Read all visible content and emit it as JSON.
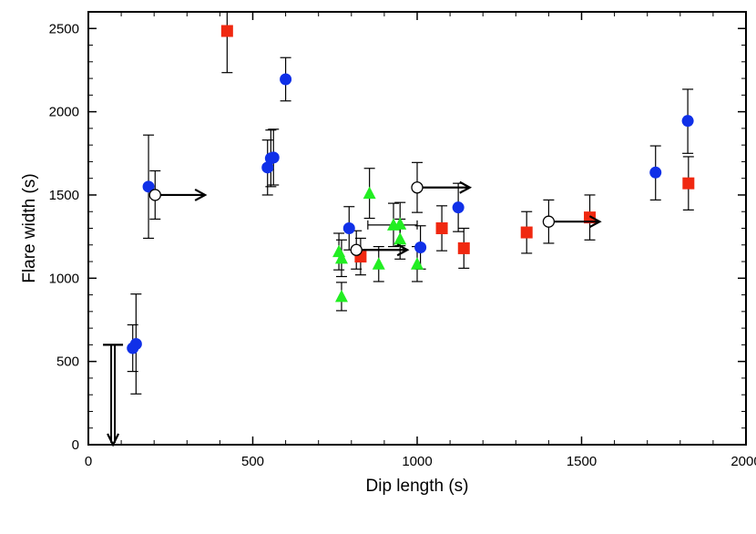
{
  "chart_data": {
    "type": "scatter",
    "xlabel": "Dip length (s)",
    "ylabel": "Flare width (s)",
    "xlim": [
      0,
      2000
    ],
    "ylim": [
      0,
      2600
    ],
    "xticks": [
      0,
      500,
      1000,
      1500,
      2000
    ],
    "yticks": [
      0,
      500,
      1000,
      1500,
      2000,
      2500
    ],
    "x_tick_labels": [
      "0",
      "500",
      "1000",
      "1500",
      "2000"
    ],
    "y_tick_labels": [
      "0",
      "500",
      "1000",
      "1500",
      "2000",
      "2500"
    ],
    "series": [
      {
        "name": "blue circles",
        "marker": "circle",
        "color": "#1030e8",
        "points": [
          {
            "x": 135,
            "y": 580,
            "yerr": [
              440,
              720
            ]
          },
          {
            "x": 145,
            "y": 605,
            "yerr": [
              305,
              905
            ]
          },
          {
            "x": 183,
            "y": 1550,
            "yerr": [
              1240,
              1860
            ]
          },
          {
            "x": 545,
            "y": 1665,
            "yerr": [
              1500,
              1830
            ]
          },
          {
            "x": 555,
            "y": 1720,
            "yerr": [
              1550,
              1890
            ]
          },
          {
            "x": 563,
            "y": 1725,
            "yerr": [
              1560,
              1895
            ]
          },
          {
            "x": 600,
            "y": 2195,
            "yerr": [
              2065,
              2325
            ],
            "xerr": [
              590,
              610
            ]
          },
          {
            "x": 793,
            "y": 1300,
            "yerr": [
              1170,
              1430
            ]
          },
          {
            "x": 1010,
            "y": 1185,
            "yerr": [
              1055,
              1315
            ]
          },
          {
            "x": 1125,
            "y": 1425,
            "yerr": [
              1280,
              1570
            ]
          },
          {
            "x": 1725,
            "y": 1635,
            "yerr": [
              1470,
              1795
            ],
            "xerr": [
              1715,
              1735
            ]
          },
          {
            "x": 1823,
            "y": 1945,
            "yerr": [
              1750,
              2135
            ],
            "xerr": [
              1813,
              1833
            ]
          }
        ]
      },
      {
        "name": "red squares",
        "marker": "square",
        "color": "#f02810",
        "points": [
          {
            "x": 422,
            "y": 2485,
            "yerr": [
              2235,
              2600
            ],
            "xerr": [
              412,
              432
            ]
          },
          {
            "x": 828,
            "y": 1130,
            "yerr": [
              1020,
              1240
            ]
          },
          {
            "x": 1075,
            "y": 1300,
            "yerr": [
              1165,
              1435
            ]
          },
          {
            "x": 1142,
            "y": 1180,
            "yerr": [
              1060,
              1300
            ]
          },
          {
            "x": 1333,
            "y": 1275,
            "yerr": [
              1150,
              1400
            ]
          },
          {
            "x": 1525,
            "y": 1365,
            "yerr": [
              1230,
              1500
            ]
          },
          {
            "x": 1825,
            "y": 1570,
            "yerr": [
              1410,
              1730
            ]
          }
        ]
      },
      {
        "name": "green triangles",
        "marker": "triangle",
        "color": "#22ee22",
        "points": [
          {
            "x": 762,
            "y": 1160,
            "yerr": [
              1050,
              1270
            ]
          },
          {
            "x": 770,
            "y": 1120,
            "yerr": [
              1010,
              1230
            ]
          },
          {
            "x": 770,
            "y": 890,
            "yerr": [
              805,
              975
            ]
          },
          {
            "x": 855,
            "y": 1510,
            "yerr": [
              1360,
              1660
            ]
          },
          {
            "x": 883,
            "y": 1085,
            "yerr": [
              980,
              1190
            ]
          },
          {
            "x": 928,
            "y": 1320,
            "yerr": [
              1190,
              1450
            ],
            "xerr": [
              850,
              1000
            ]
          },
          {
            "x": 948,
            "y": 1325,
            "yerr": [
              1195,
              1455
            ]
          },
          {
            "x": 948,
            "y": 1235,
            "yerr": [
              1115,
              1355
            ]
          },
          {
            "x": 1000,
            "y": 1085,
            "yerr": [
              980,
              1190
            ]
          }
        ]
      },
      {
        "name": "open circles (lower limits)",
        "marker": "open-circle",
        "color": "#000000",
        "points": [
          {
            "x": 203,
            "y": 1500,
            "yerr": [
              1355,
              1645
            ],
            "arrow_to_x": 355
          },
          {
            "x": 815,
            "y": 1170,
            "yerr": [
              1055,
              1285
            ],
            "arrow_to_x": 970
          },
          {
            "x": 1000,
            "y": 1545,
            "yerr": [
              1395,
              1695
            ],
            "arrow_to_x": 1160
          },
          {
            "x": 1400,
            "y": 1340,
            "yerr": [
              1210,
              1470
            ],
            "arrow_to_x": 1555
          }
        ]
      }
    ],
    "upper_limits": [
      {
        "x": 75,
        "y_from": 600,
        "y_to": 0,
        "marker": "bar-with-down-arrow"
      }
    ]
  }
}
